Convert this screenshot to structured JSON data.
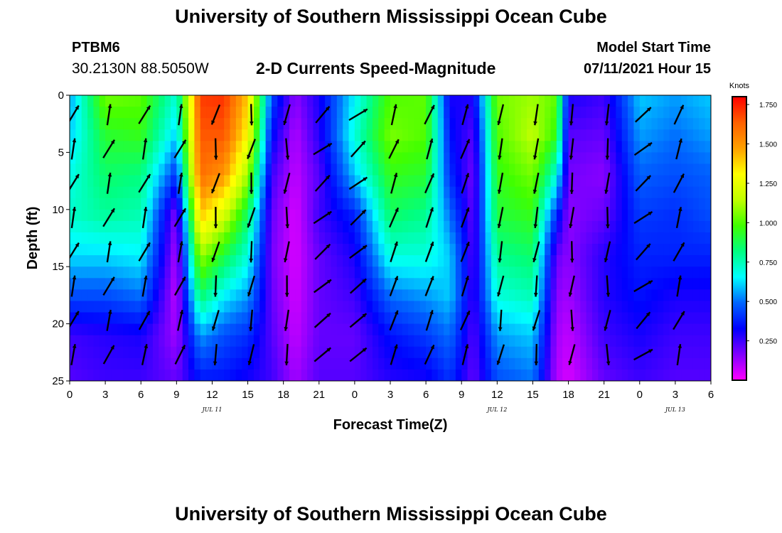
{
  "header": {
    "title": "University of Southern Mississippi Ocean Cube",
    "station_id": "PTBM6",
    "station_coords": "30.2130N  88.5050W",
    "model_start_label": "Model Start Time",
    "model_start_value": "07/11/2021 Hour 15"
  },
  "footer": {
    "title": "University of Southern Mississippi Ocean Cube"
  },
  "chart_data": {
    "type": "heatmap",
    "title": "2-D Currents Speed-Magnitude",
    "xlabel": "Forecast Time(Z)",
    "ylabel": "Depth (ft)",
    "x_unit": "hours since 07/11/2021 00Z",
    "xlim": [
      0,
      54
    ],
    "ylim": [
      0,
      25
    ],
    "y_inverted": true,
    "x_tick_labels": [
      "0",
      "3",
      "6",
      "9",
      "12",
      "15",
      "18",
      "21",
      "0",
      "3",
      "6",
      "9",
      "12",
      "15",
      "18",
      "21",
      "0",
      "3",
      "6"
    ],
    "y_ticks": [
      0,
      5,
      10,
      15,
      20,
      25
    ],
    "date_labels": [
      {
        "label": "JUL 11",
        "hour": 12
      },
      {
        "label": "JUL 12",
        "hour": 36
      },
      {
        "label": "JUL 13",
        "hour": 51
      }
    ],
    "colorbar": {
      "label": "Knots",
      "min": 0.0,
      "max": 1.8,
      "tick_labels": [
        "0.250",
        "0.500",
        "0.750",
        "1.000",
        "1.250",
        "1.500",
        "1.750"
      ],
      "tick_values": [
        0.25,
        0.5,
        0.75,
        1.0,
        1.25,
        1.5,
        1.75
      ],
      "colors": [
        "#ff00ff",
        "#8000ff",
        "#0000ff",
        "#0066ff",
        "#00ffff",
        "#00ff80",
        "#40ff00",
        "#c0ff00",
        "#ffff00",
        "#ffa000",
        "#ff6000",
        "#ff0000"
      ]
    },
    "profiles": [
      {
        "h": 0,
        "s": [
          0.55,
          0.6,
          0.68,
          0.72,
          0.62,
          0.45,
          0.25,
          0.22
        ]
      },
      {
        "h": 3,
        "s": [
          1.05,
          0.92,
          0.85,
          0.78,
          0.62,
          0.45,
          0.28,
          0.25
        ]
      },
      {
        "h": 6,
        "s": [
          1.02,
          0.95,
          0.82,
          0.75,
          0.65,
          0.5,
          0.3,
          0.25
        ]
      },
      {
        "h": 9,
        "s": [
          0.7,
          0.6,
          0.4,
          0.15,
          0.1,
          0.08,
          0.12,
          0.2
        ]
      },
      {
        "h": 11,
        "s": [
          1.7,
          1.65,
          1.6,
          1.4,
          1.1,
          0.85,
          0.55,
          0.35
        ]
      },
      {
        "h": 13,
        "s": [
          1.72,
          1.65,
          1.5,
          1.2,
          0.9,
          0.65,
          0.45,
          0.35
        ]
      },
      {
        "h": 15,
        "s": [
          1.4,
          1.3,
          1.1,
          0.85,
          0.7,
          0.55,
          0.4,
          0.3
        ]
      },
      {
        "h": 17,
        "s": [
          0.45,
          0.35,
          0.25,
          0.2,
          0.18,
          0.2,
          0.22,
          0.25
        ]
      },
      {
        "h": 19,
        "s": [
          0.15,
          0.1,
          0.08,
          0.05,
          0.05,
          0.06,
          0.08,
          0.12
        ]
      },
      {
        "h": 21,
        "s": [
          0.3,
          0.28,
          0.22,
          0.25,
          0.2,
          0.2,
          0.2,
          0.22
        ]
      },
      {
        "h": 24,
        "s": [
          0.65,
          0.7,
          0.6,
          0.38,
          0.3,
          0.25,
          0.2,
          0.22
        ]
      },
      {
        "h": 27,
        "s": [
          1.0,
          1.05,
          0.95,
          0.85,
          0.7,
          0.5,
          0.35,
          0.28
        ]
      },
      {
        "h": 30,
        "s": [
          1.02,
          1.0,
          0.92,
          0.8,
          0.7,
          0.55,
          0.42,
          0.3
        ]
      },
      {
        "h": 32,
        "s": [
          0.3,
          0.35,
          0.4,
          0.5,
          0.6,
          0.6,
          0.5,
          0.4
        ]
      },
      {
        "h": 34,
        "s": [
          0.3,
          0.22,
          0.18,
          0.2,
          0.22,
          0.25,
          0.22,
          0.2
        ]
      },
      {
        "h": 36,
        "s": [
          1.05,
          1.0,
          0.95,
          0.9,
          0.8,
          0.7,
          0.55,
          0.45
        ]
      },
      {
        "h": 39,
        "s": [
          1.1,
          1.15,
          1.05,
          0.95,
          0.85,
          0.75,
          0.6,
          0.5
        ]
      },
      {
        "h": 41,
        "s": [
          1.02,
          0.95,
          0.7,
          0.4,
          0.2,
          0.15,
          0.12,
          0.1
        ]
      },
      {
        "h": 42,
        "s": [
          0.3,
          0.22,
          0.18,
          0.15,
          0.15,
          0.12,
          0.08,
          0.05
        ]
      },
      {
        "h": 45,
        "s": [
          0.25,
          0.2,
          0.15,
          0.2,
          0.28,
          0.28,
          0.25,
          0.2
        ]
      },
      {
        "h": 48,
        "s": [
          0.6,
          0.55,
          0.48,
          0.42,
          0.38,
          0.35,
          0.3,
          0.25
        ]
      },
      {
        "h": 51,
        "s": [
          0.55,
          0.5,
          0.45,
          0.4,
          0.38,
          0.3,
          0.25,
          0.22
        ]
      },
      {
        "h": 54,
        "s": [
          0.6,
          0.55,
          0.48,
          0.45,
          0.38,
          0.3,
          0.25,
          0.22
        ]
      }
    ],
    "profile_depths": [
      0,
      3.5,
      7,
      10.5,
      14,
      17.5,
      21,
      25
    ]
  }
}
